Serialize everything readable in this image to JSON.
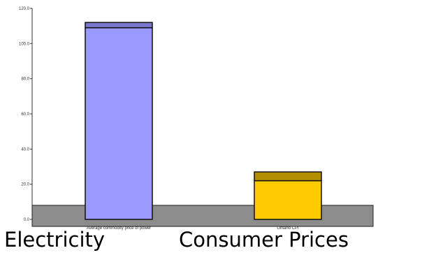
{
  "chart_data": {
    "type": "bar",
    "yticks": [
      "0.0",
      "20.0",
      "40.0",
      "60.0",
      "80.0",
      "100.0",
      "120.0"
    ],
    "ylim": [
      0,
      120
    ],
    "categories": [
      "Average commodity price of power",
      "Ontario CPI"
    ],
    "bars": [
      {
        "base": 0,
        "main_top": 109,
        "cap_top": 112,
        "fill": "#9999ff",
        "cap_fill": "#7777cc"
      },
      {
        "base": 0,
        "main_top": 22,
        "cap_top": 27,
        "fill": "#ffcc00",
        "cap_fill": "#b38f00"
      }
    ],
    "band": {
      "from": -4,
      "to": 8,
      "fill": "#8c8c8c"
    },
    "captions": [
      "Electricity",
      "Consumer Prices"
    ]
  }
}
